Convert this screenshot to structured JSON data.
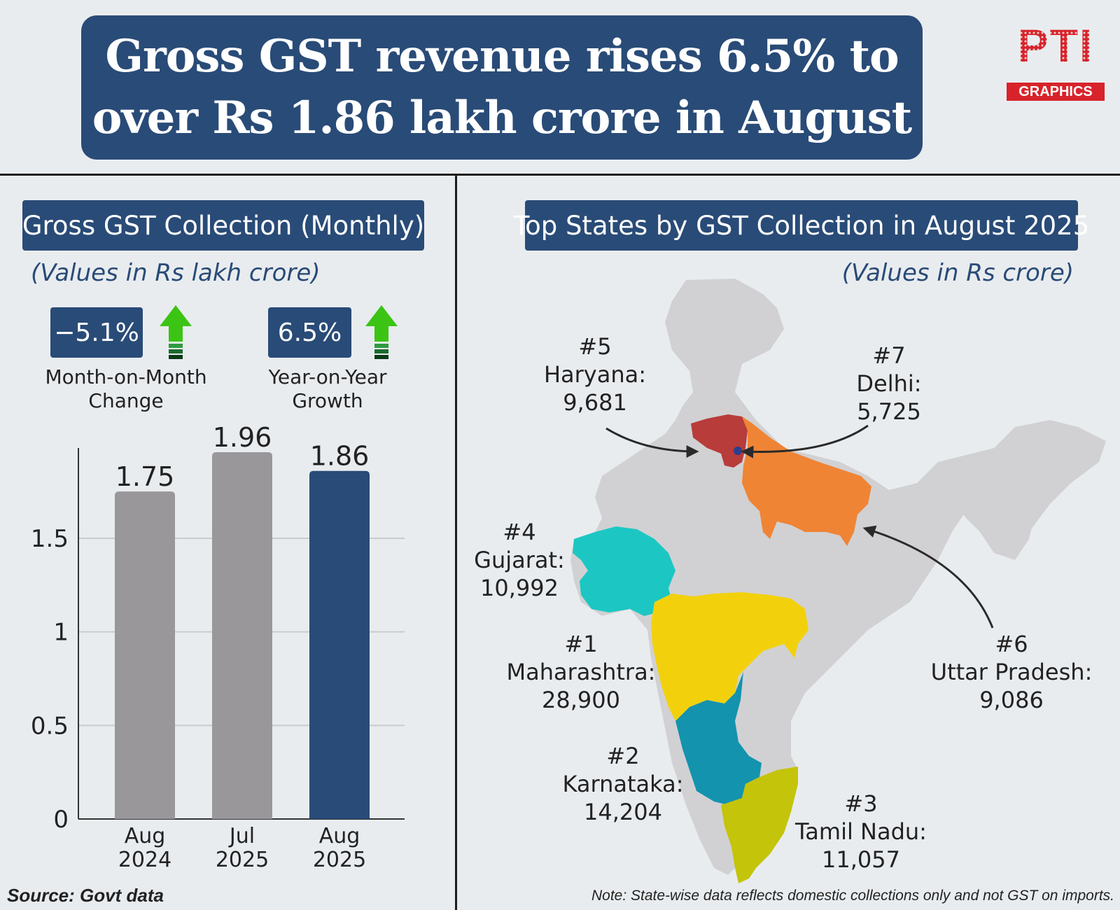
{
  "title": {
    "line1": "Gross GST revenue rises 6.5% to",
    "line2": "over Rs 1.86 lakh crore in August"
  },
  "logo": {
    "mark": "PTI",
    "band": "GRAPHICS"
  },
  "left_panel": {
    "heading": "Gross GST Collection (Monthly)",
    "units": "(Values in Rs lakh crore)",
    "kpis": [
      {
        "value": "−5.1%",
        "caption_line1": "Month-on-Month",
        "caption_line2": "Change",
        "arrow": "up-arrow-icon"
      },
      {
        "value": "6.5%",
        "caption_line1": "Year-on-Year",
        "caption_line2": "Growth",
        "arrow": "up-arrow-icon"
      }
    ]
  },
  "right_panel": {
    "heading": "Top States by GST Collection in August 2025",
    "units": "(Values in Rs crore)",
    "states": [
      {
        "rank": "#5",
        "name": "Haryana:",
        "value": "9,681",
        "color": "#b83c3a"
      },
      {
        "rank": "#7",
        "name": "Delhi:",
        "value": "5,725",
        "color": "#2c3e8c"
      },
      {
        "rank": "#4",
        "name": "Gujarat:",
        "value": "10,992",
        "color": "#1cc7c3"
      },
      {
        "rank": "#1",
        "name": "Maharashtra:",
        "value": "28,900",
        "color": "#f2d10c"
      },
      {
        "rank": "#6",
        "name": "Uttar Pradesh:",
        "value": "9,086",
        "color": "#ef8435"
      },
      {
        "rank": "#2",
        "name": "Karnataka:",
        "value": "14,204",
        "color": "#1493ae"
      },
      {
        "rank": "#3",
        "name": "Tamil Nadu:",
        "value": "11,057",
        "color": "#c4c40b"
      }
    ]
  },
  "chart_data": {
    "type": "bar",
    "categories": [
      [
        "Aug",
        "2024"
      ],
      [
        "Jul",
        "2025"
      ],
      [
        "Aug",
        "2025"
      ]
    ],
    "values": [
      1.75,
      1.96,
      1.86
    ],
    "value_labels": [
      "1.75",
      "1.96",
      "1.86"
    ],
    "colors": [
      "#999799",
      "#999799",
      "#294b77"
    ],
    "yticks": [
      "0",
      "0.5",
      "1",
      "1.5"
    ],
    "ylim": [
      0,
      1.96
    ],
    "grid": true
  },
  "source": "Source: Govt data",
  "footnote": "Note: State-wise data reflects domestic collections only and not GST on imports."
}
